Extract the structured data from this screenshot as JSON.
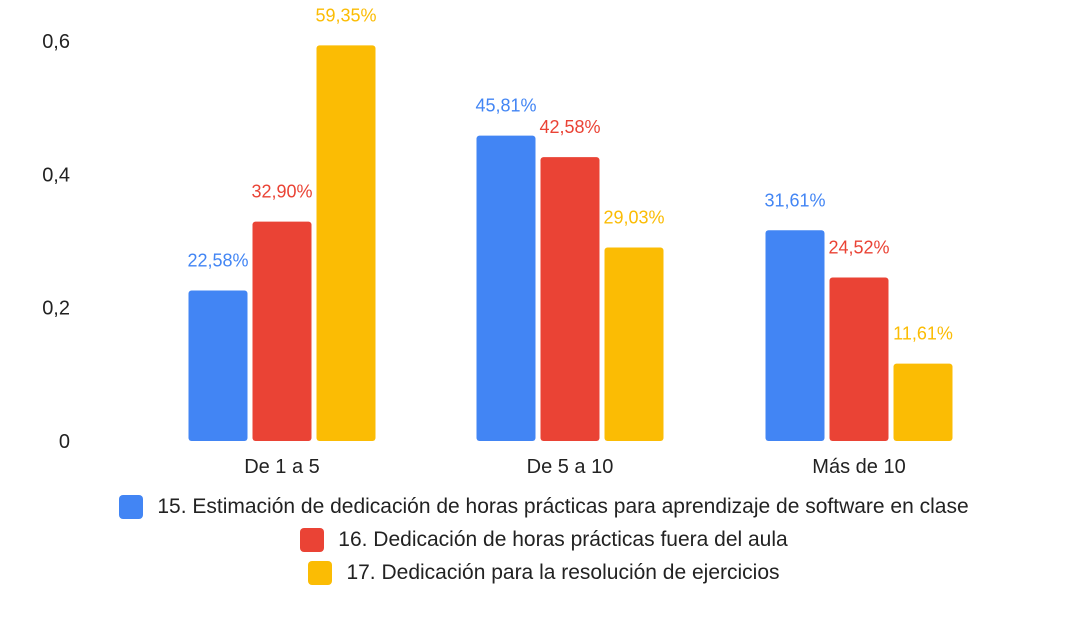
{
  "chart_data": {
    "type": "bar",
    "categories": [
      "De 1 a 5",
      "De 5 a 10",
      "Más de 10"
    ],
    "series": [
      {
        "name": "15. Estimación de dedicación de horas prácticas para aprendizaje de software en clase",
        "color": "#4285f4",
        "values": [
          0.2258,
          0.4581,
          0.3161
        ],
        "labels": [
          "22,58%",
          "45,81%",
          "31,61%"
        ]
      },
      {
        "name": "16. Dedicación de horas prácticas fuera del aula",
        "color": "#ea4335",
        "values": [
          0.329,
          0.4258,
          0.2452
        ],
        "labels": [
          "32,90%",
          "42,58%",
          "24,52%"
        ]
      },
      {
        "name": "17. Dedicación para la resolución de ejercicios",
        "color": "#fbbc04",
        "values": [
          0.5935,
          0.2903,
          0.1161
        ],
        "labels": [
          "59,35%",
          "29,03%",
          "11,61%"
        ]
      }
    ],
    "y_ticks": [
      {
        "value": 0,
        "label": "0"
      },
      {
        "value": 0.2,
        "label": "0,2"
      },
      {
        "value": 0.4,
        "label": "0,4"
      },
      {
        "value": 0.6,
        "label": "0,6"
      }
    ],
    "ylim": [
      0,
      0.6
    ],
    "grid": false,
    "legend_position": "bottom"
  }
}
